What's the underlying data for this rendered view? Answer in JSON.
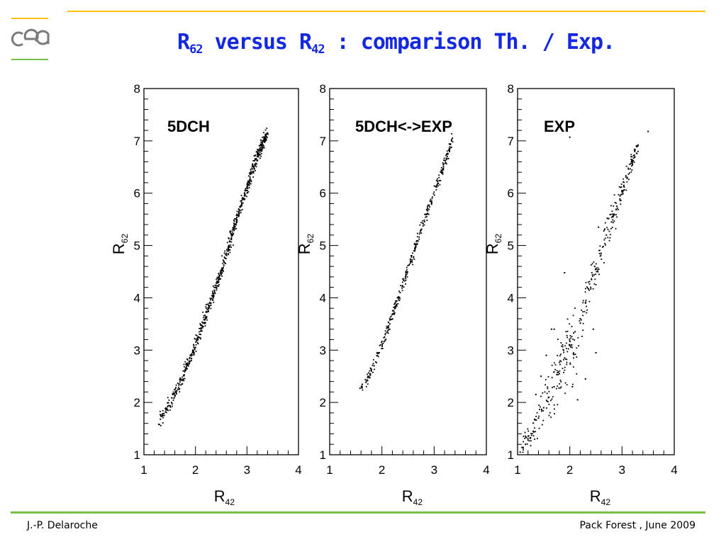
{
  "header": {
    "title_main": "R",
    "title_sub1": "62",
    "title_mid": " versus R",
    "title_sub2": "42",
    "title_tail": " : comparison Th. / Exp.",
    "title_color": "#1428e0",
    "logo_text": "cea"
  },
  "footer": {
    "left": "J.-P. Delaroche",
    "right": "Pack Forest , June 2009"
  },
  "colors": {
    "top_rule": "#ffc000",
    "bottom_rule": "#7ac143",
    "logo": "#7a7a7a"
  },
  "chart_data": [
    {
      "type": "scatter",
      "label": "5DCH",
      "xlabel": "R",
      "xlabel_sub": "42",
      "ylabel": "R",
      "ylabel_sub": "62",
      "xlim": [
        1,
        4
      ],
      "ylim": [
        1,
        8
      ],
      "x_ticks": [
        "1",
        "2",
        "3",
        "4"
      ],
      "y_ticks": [
        "1",
        "2",
        "3",
        "4",
        "5",
        "6",
        "7",
        "8"
      ],
      "trend": [
        [
          1.3,
          1.65
        ],
        [
          1.4,
          1.8
        ],
        [
          1.65,
          2.25
        ],
        [
          1.8,
          2.6
        ],
        [
          2.0,
          3.1
        ],
        [
          2.2,
          3.65
        ],
        [
          2.4,
          4.2
        ],
        [
          2.6,
          4.85
        ],
        [
          2.8,
          5.5
        ],
        [
          3.0,
          6.1
        ],
        [
          3.2,
          6.7
        ],
        [
          3.4,
          7.15
        ]
      ],
      "points": [
        [
          1.32,
          1.68
        ],
        [
          1.35,
          1.75
        ],
        [
          1.42,
          1.82
        ],
        [
          1.62,
          2.28
        ],
        [
          1.68,
          2.25
        ],
        [
          1.74,
          2.35
        ],
        [
          1.8,
          2.62
        ],
        [
          1.85,
          2.72
        ],
        [
          1.9,
          2.9
        ],
        [
          1.95,
          3.0
        ],
        [
          2.0,
          3.05
        ],
        [
          2.05,
          3.2
        ],
        [
          2.1,
          3.3
        ],
        [
          2.15,
          3.45
        ],
        [
          2.2,
          3.62
        ],
        [
          2.25,
          3.75
        ],
        [
          2.3,
          3.9
        ],
        [
          2.35,
          4.05
        ],
        [
          2.4,
          4.2
        ],
        [
          2.45,
          4.38
        ],
        [
          2.5,
          4.52
        ],
        [
          2.55,
          4.7
        ],
        [
          2.6,
          4.85
        ],
        [
          2.65,
          5.0
        ],
        [
          2.7,
          5.15
        ],
        [
          2.75,
          5.35
        ],
        [
          2.8,
          5.5
        ],
        [
          2.85,
          5.62
        ],
        [
          2.9,
          5.8
        ],
        [
          2.95,
          5.95
        ],
        [
          3.0,
          6.1
        ],
        [
          3.05,
          6.25
        ],
        [
          3.1,
          6.4
        ],
        [
          3.15,
          6.55
        ],
        [
          3.2,
          6.7
        ],
        [
          3.25,
          6.85
        ],
        [
          3.3,
          6.95
        ],
        [
          3.35,
          7.05
        ],
        [
          3.4,
          7.15
        ]
      ],
      "spread": 0.07,
      "count": 650
    },
    {
      "type": "scatter",
      "label": "5DCH<->EXP",
      "xlabel": "R",
      "xlabel_sub": "42",
      "ylabel": "R",
      "ylabel_sub": "62",
      "xlim": [
        1,
        4
      ],
      "ylim": [
        1,
        8
      ],
      "x_ticks": [
        "1",
        "2",
        "3",
        "4"
      ],
      "y_ticks": [
        "1",
        "2",
        "3",
        "4",
        "5",
        "6",
        "7",
        "8"
      ],
      "trend": [
        [
          1.6,
          2.28
        ],
        [
          1.8,
          2.6
        ],
        [
          2.0,
          3.1
        ],
        [
          2.2,
          3.65
        ],
        [
          2.4,
          4.25
        ],
        [
          2.6,
          4.85
        ],
        [
          2.8,
          5.45
        ],
        [
          3.0,
          6.0
        ],
        [
          3.2,
          6.55
        ],
        [
          3.35,
          7.05
        ]
      ],
      "points": [
        [
          1.58,
          2.27
        ],
        [
          1.62,
          2.3
        ],
        [
          1.78,
          2.55
        ],
        [
          1.85,
          2.7
        ],
        [
          1.95,
          2.95
        ],
        [
          2.05,
          3.25
        ],
        [
          2.15,
          3.5
        ],
        [
          2.25,
          3.8
        ],
        [
          2.35,
          4.1
        ],
        [
          2.45,
          4.4
        ],
        [
          2.55,
          4.7
        ],
        [
          2.65,
          5.0
        ],
        [
          2.75,
          5.3
        ],
        [
          2.85,
          5.6
        ],
        [
          2.95,
          5.85
        ],
        [
          3.05,
          6.15
        ],
        [
          3.15,
          6.4
        ],
        [
          3.25,
          6.7
        ],
        [
          3.35,
          7.05
        ]
      ],
      "spread": 0.06,
      "count": 320
    },
    {
      "type": "scatter",
      "label": "EXP",
      "xlabel": "R",
      "xlabel_sub": "42",
      "ylabel": "R",
      "ylabel_sub": "62",
      "xlim": [
        1,
        4
      ],
      "ylim": [
        1,
        8
      ],
      "x_ticks": [
        "1",
        "2",
        "3",
        "4"
      ],
      "y_ticks": [
        "1",
        "2",
        "3",
        "4",
        "5",
        "6",
        "7",
        "8"
      ],
      "trend": [
        [
          1.05,
          1.05
        ],
        [
          1.3,
          1.5
        ],
        [
          1.6,
          2.1
        ],
        [
          1.9,
          2.8
        ],
        [
          2.2,
          3.6
        ],
        [
          2.5,
          4.6
        ],
        [
          2.8,
          5.5
        ],
        [
          3.1,
          6.3
        ],
        [
          3.3,
          6.9
        ]
      ],
      "points": [
        [
          1.05,
          1.05
        ],
        [
          1.15,
          1.2
        ],
        [
          1.2,
          1.28
        ],
        [
          1.3,
          1.45
        ],
        [
          1.4,
          1.7
        ],
        [
          1.5,
          1.9
        ],
        [
          1.6,
          2.1
        ],
        [
          1.7,
          2.3
        ],
        [
          1.8,
          2.55
        ],
        [
          1.9,
          2.85
        ],
        [
          2.0,
          3.1
        ],
        [
          2.1,
          3.35
        ],
        [
          2.2,
          3.6
        ],
        [
          2.3,
          3.9
        ],
        [
          2.4,
          4.2
        ],
        [
          2.5,
          4.55
        ],
        [
          2.6,
          4.85
        ],
        [
          2.7,
          5.2
        ],
        [
          2.8,
          5.45
        ],
        [
          2.9,
          5.75
        ],
        [
          3.0,
          6.05
        ],
        [
          3.1,
          6.3
        ],
        [
          3.2,
          6.6
        ],
        [
          3.3,
          6.9
        ],
        [
          3.5,
          7.18
        ],
        [
          2.0,
          7.07
        ],
        [
          1.9,
          4.48
        ],
        [
          1.55,
          2.9
        ],
        [
          1.65,
          3.4
        ],
        [
          1.7,
          3.4
        ],
        [
          1.45,
          2.5
        ],
        [
          1.35,
          2.15
        ],
        [
          2.15,
          2.05
        ],
        [
          2.05,
          2.3
        ],
        [
          2.45,
          3.4
        ],
        [
          2.5,
          2.95
        ],
        [
          2.3,
          2.45
        ],
        [
          2.55,
          5.35
        ]
      ],
      "spread": 0.22,
      "count": 360
    }
  ]
}
